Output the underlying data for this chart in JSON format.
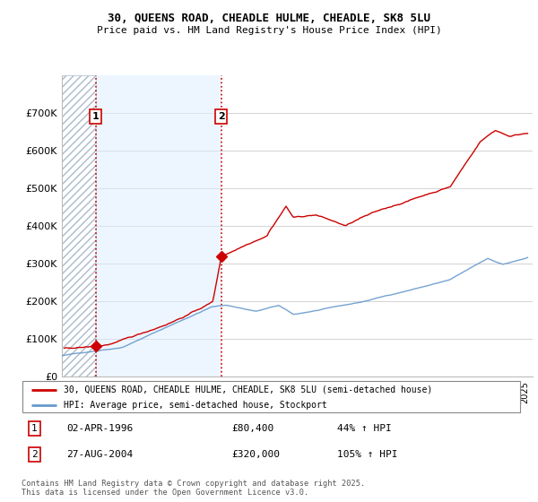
{
  "title": "30, QUEENS ROAD, CHEADLE HULME, CHEADLE, SK8 5LU",
  "subtitle": "Price paid vs. HM Land Registry's House Price Index (HPI)",
  "ylim": [
    0,
    800000
  ],
  "xlim_start": 1994.0,
  "xlim_end": 2025.5,
  "yticks": [
    0,
    100000,
    200000,
    300000,
    400000,
    500000,
    600000,
    700000
  ],
  "ytick_labels": [
    "£0",
    "£100K",
    "£200K",
    "£300K",
    "£400K",
    "£500K",
    "£600K",
    "£700K"
  ],
  "legend1_label": "30, QUEENS ROAD, CHEADLE HULME, CHEADLE, SK8 5LU (semi-detached house)",
  "legend2_label": "HPI: Average price, semi-detached house, Stockport",
  "sale1_date": 1996.25,
  "sale1_price": 80400,
  "sale1_label": "1",
  "sale2_date": 2004.67,
  "sale2_price": 320000,
  "sale2_label": "2",
  "footer": "Contains HM Land Registry data © Crown copyright and database right 2025.\nThis data is licensed under the Open Government Licence v3.0.",
  "red_color": "#cc0000",
  "blue_color": "#6699cc",
  "light_blue_fill": "#ddeeff"
}
